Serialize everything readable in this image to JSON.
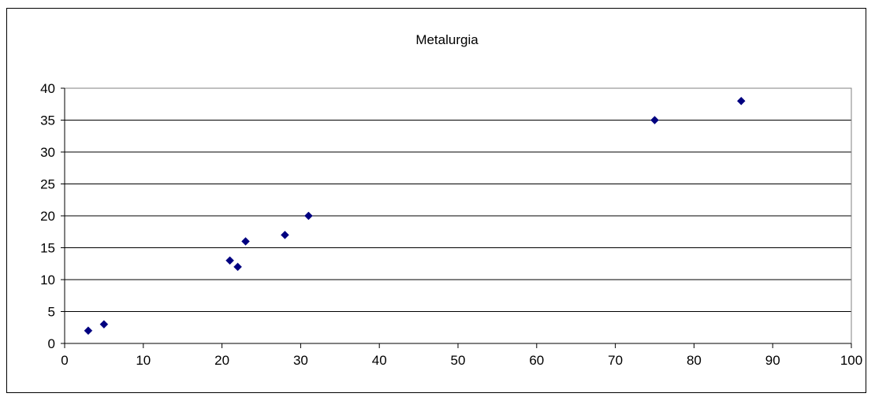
{
  "chart_data": {
    "type": "scatter",
    "title": "Metalurgia",
    "xlabel": "",
    "ylabel": "",
    "xlim": [
      0,
      100
    ],
    "ylim": [
      0,
      40
    ],
    "x_ticks": [
      0,
      10,
      20,
      30,
      40,
      50,
      60,
      70,
      80,
      90,
      100
    ],
    "y_ticks": [
      0,
      5,
      10,
      15,
      20,
      25,
      30,
      35,
      40
    ],
    "grid": {
      "horizontal": true,
      "vertical": false
    },
    "legend": "none",
    "series": [
      {
        "marker": "diamond",
        "color": "#000080",
        "points": [
          {
            "x": 3,
            "y": 2
          },
          {
            "x": 5,
            "y": 3
          },
          {
            "x": 21,
            "y": 13
          },
          {
            "x": 22,
            "y": 12
          },
          {
            "x": 23,
            "y": 16
          },
          {
            "x": 28,
            "y": 17
          },
          {
            "x": 31,
            "y": 20
          },
          {
            "x": 75,
            "y": 35
          },
          {
            "x": 86,
            "y": 38
          }
        ]
      }
    ]
  }
}
